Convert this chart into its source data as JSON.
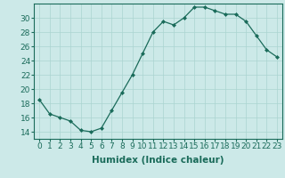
{
  "x": [
    0,
    1,
    2,
    3,
    4,
    5,
    6,
    7,
    8,
    9,
    10,
    11,
    12,
    13,
    14,
    15,
    16,
    17,
    18,
    19,
    20,
    21,
    22,
    23
  ],
  "y": [
    18.5,
    16.5,
    16.0,
    15.5,
    14.2,
    14.0,
    14.5,
    17.0,
    19.5,
    22.0,
    25.0,
    28.0,
    29.5,
    29.0,
    30.0,
    31.5,
    31.5,
    31.0,
    30.5,
    30.5,
    29.5,
    27.5,
    25.5,
    24.5
  ],
  "line_color": "#1a6b5a",
  "marker": "D",
  "marker_size": 2,
  "bg_color": "#cce9e8",
  "grid_color": "#aad4d0",
  "xlabel": "Humidex (Indice chaleur)",
  "ylim": [
    13,
    32
  ],
  "xlim": [
    -0.5,
    23.5
  ],
  "yticks": [
    14,
    16,
    18,
    20,
    22,
    24,
    26,
    28,
    30
  ],
  "xticks": [
    0,
    1,
    2,
    3,
    4,
    5,
    6,
    7,
    8,
    9,
    10,
    11,
    12,
    13,
    14,
    15,
    16,
    17,
    18,
    19,
    20,
    21,
    22,
    23
  ],
  "tick_fontsize": 6.5,
  "label_fontsize": 7.5
}
